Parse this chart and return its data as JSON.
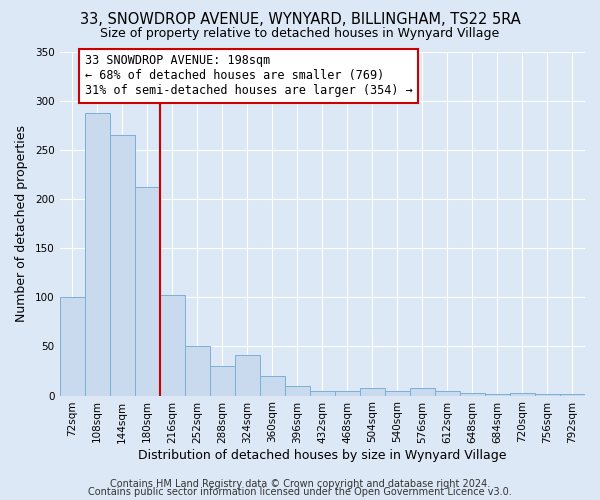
{
  "title": "33, SNOWDROP AVENUE, WYNYARD, BILLINGHAM, TS22 5RA",
  "subtitle": "Size of property relative to detached houses in Wynyard Village",
  "xlabel": "Distribution of detached houses by size in Wynyard Village",
  "ylabel": "Number of detached properties",
  "bar_values": [
    100,
    287,
    265,
    212,
    102,
    50,
    30,
    41,
    20,
    10,
    5,
    5,
    8,
    5,
    8,
    5,
    3,
    2,
    3,
    2,
    2
  ],
  "bin_labels": [
    "72sqm",
    "108sqm",
    "144sqm",
    "180sqm",
    "216sqm",
    "252sqm",
    "288sqm",
    "324sqm",
    "360sqm",
    "396sqm",
    "432sqm",
    "468sqm",
    "504sqm",
    "540sqm",
    "576sqm",
    "612sqm",
    "648sqm",
    "684sqm",
    "720sqm",
    "756sqm",
    "792sqm"
  ],
  "bar_color": "#c9d9ee",
  "bar_edge_color": "#7aafd4",
  "vline_x": 3.5,
  "vline_color": "#cc0000",
  "annotation_line1": "33 SNOWDROP AVENUE: 198sqm",
  "annotation_line2": "← 68% of detached houses are smaller (769)",
  "annotation_line3": "31% of semi-detached houses are larger (354) →",
  "annotation_box_color": "white",
  "annotation_box_edge": "#cc0000",
  "ylim": [
    0,
    350
  ],
  "yticks": [
    0,
    50,
    100,
    150,
    200,
    250,
    300,
    350
  ],
  "footer_line1": "Contains HM Land Registry data © Crown copyright and database right 2024.",
  "footer_line2": "Contains public sector information licensed under the Open Government Licence v3.0.",
  "bg_color": "#dce8f5",
  "plot_bg_color": "#dce8f5",
  "grid_color": "white",
  "title_fontsize": 10.5,
  "subtitle_fontsize": 9,
  "label_fontsize": 9,
  "annot_fontsize": 8.5,
  "tick_fontsize": 7.5,
  "footer_fontsize": 7
}
